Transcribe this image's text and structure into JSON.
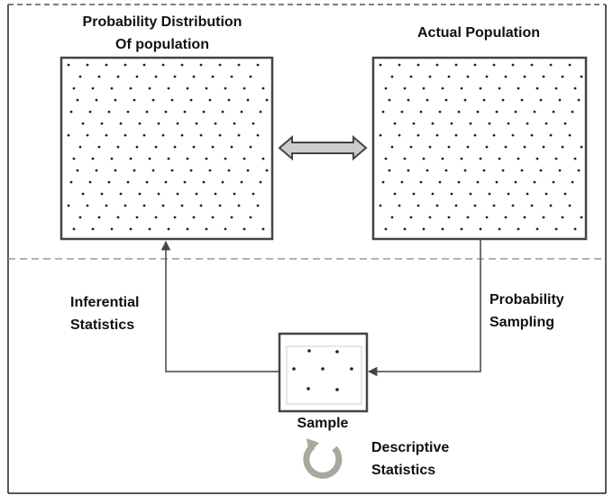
{
  "nodes": [
    {
      "label": [
        "Probability Distribution",
        "Of population"
      ]
    },
    {
      "label": [
        "Actual Population"
      ]
    },
    {
      "label": [
        "Sample"
      ]
    }
  ],
  "edges": [
    {
      "label": [
        "Inferential",
        "Statistics"
      ]
    },
    {
      "label": [
        "Probability",
        "Sampling"
      ]
    }
  ],
  "loop": {
    "label": [
      "Descriptive",
      "Statistics"
    ]
  }
}
